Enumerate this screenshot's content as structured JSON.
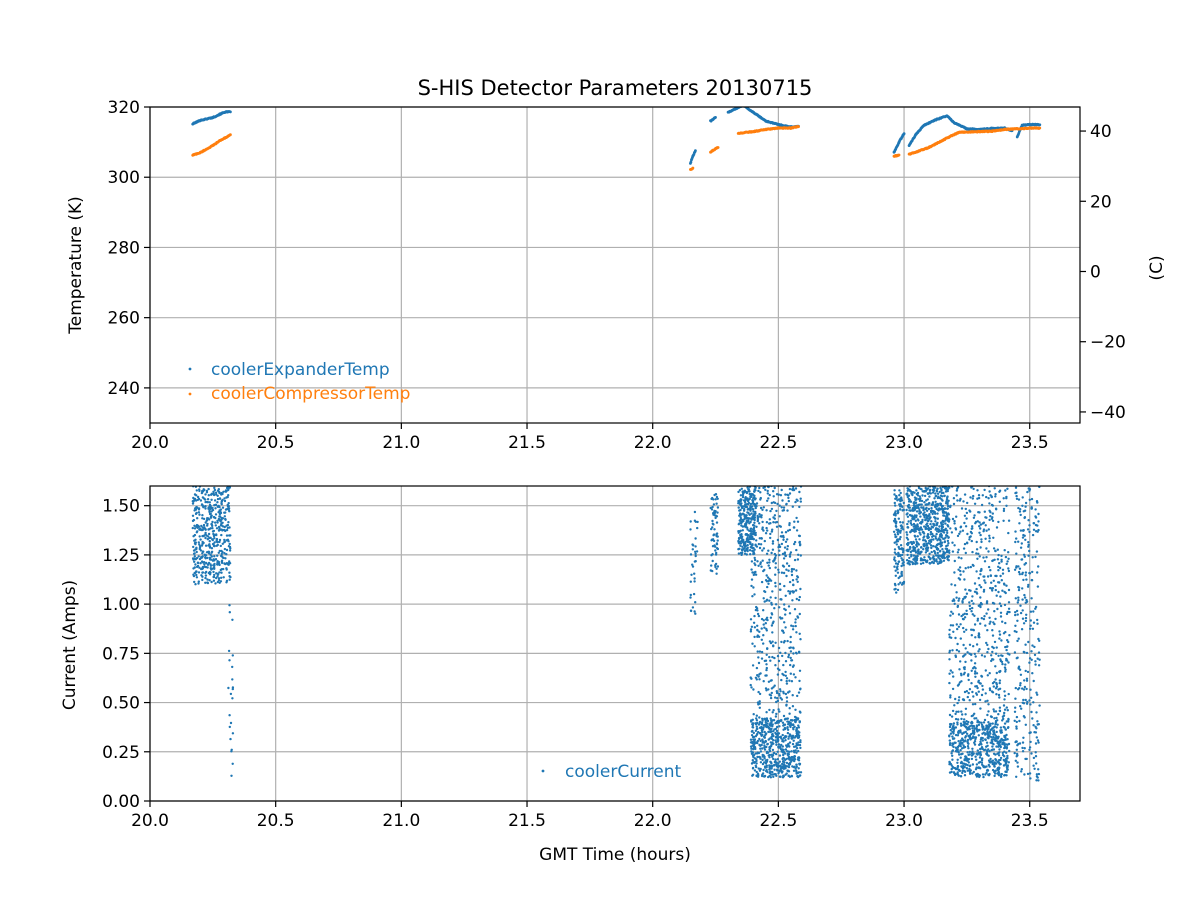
{
  "chart_data": [
    {
      "type": "scatter",
      "title": "S-HIS Detector Parameters 20130715",
      "xlabel": "",
      "ylabel": "Temperature (K)",
      "y2label": "(C)",
      "xlim": [
        20.0,
        23.7
      ],
      "ylim": [
        230,
        320
      ],
      "y2lim": [
        -43.15,
        46.85
      ],
      "xticks": [
        20.0,
        20.5,
        21.0,
        21.5,
        22.0,
        22.5,
        23.0,
        23.5
      ],
      "xtick_labels": [
        "20.0",
        "20.5",
        "21.0",
        "21.5",
        "22.0",
        "22.5",
        "23.0",
        "23.5"
      ],
      "yticks": [
        240,
        260,
        280,
        300,
        320
      ],
      "ytick_labels": [
        "240",
        "260",
        "280",
        "300",
        "320"
      ],
      "y2ticks": [
        -40,
        -20,
        0,
        20,
        40
      ],
      "y2tick_labels": [
        "−40",
        "−20",
        "0",
        "20",
        "40"
      ],
      "grid": true,
      "legend_position": "lower-left",
      "series": [
        {
          "name": "coolerExpanderTemp",
          "color": "#1f77b4",
          "segments": [
            [
              [
                20.17,
                315.2
              ],
              [
                20.2,
                316.2
              ],
              [
                20.25,
                317.0
              ],
              [
                20.28,
                318.0
              ],
              [
                20.3,
                318.6
              ],
              [
                20.32,
                318.6
              ]
            ],
            [
              [
                22.15,
                304.0
              ],
              [
                22.16,
                306.0
              ],
              [
                22.17,
                307.5
              ]
            ],
            [
              [
                22.23,
                316.0
              ],
              [
                22.25,
                317.0
              ]
            ],
            [
              [
                22.3,
                318.5
              ],
              [
                22.33,
                319.5
              ],
              [
                22.36,
                320.5
              ],
              [
                22.4,
                318.5
              ],
              [
                22.45,
                316.0
              ],
              [
                22.5,
                315.0
              ],
              [
                22.55,
                314.3
              ],
              [
                22.58,
                314.5
              ]
            ],
            [
              [
                22.96,
                307.0
              ],
              [
                22.98,
                310.0
              ],
              [
                23.0,
                312.5
              ]
            ],
            [
              [
                23.02,
                309.0
              ],
              [
                23.05,
                312.5
              ],
              [
                23.08,
                314.8
              ],
              [
                23.12,
                316.2
              ],
              [
                23.17,
                317.5
              ],
              [
                23.2,
                315.5
              ],
              [
                23.25,
                313.8
              ],
              [
                23.3,
                313.6
              ],
              [
                23.35,
                313.9
              ],
              [
                23.4,
                314.0
              ],
              [
                23.43,
                313.2
              ]
            ],
            [
              [
                23.45,
                311.5
              ],
              [
                23.47,
                314.8
              ],
              [
                23.5,
                315.0
              ],
              [
                23.54,
                315.0
              ]
            ]
          ]
        },
        {
          "name": "coolerCompressorTemp",
          "color": "#ff7f0e",
          "segments": [
            [
              [
                20.17,
                306.3
              ],
              [
                20.2,
                307.0
              ],
              [
                20.25,
                309.0
              ],
              [
                20.28,
                310.5
              ],
              [
                20.32,
                312.0
              ]
            ],
            [
              [
                22.15,
                302.3
              ],
              [
                22.16,
                302.5
              ]
            ],
            [
              [
                22.23,
                307.2
              ],
              [
                22.26,
                308.5
              ]
            ],
            [
              [
                22.34,
                312.5
              ],
              [
                22.4,
                313.0
              ],
              [
                22.45,
                313.6
              ],
              [
                22.5,
                314.0
              ],
              [
                22.55,
                314.0
              ],
              [
                22.58,
                314.5
              ]
            ],
            [
              [
                22.96,
                306.0
              ],
              [
                22.98,
                306.3
              ]
            ],
            [
              [
                23.02,
                306.5
              ],
              [
                23.1,
                308.5
              ],
              [
                23.18,
                311.5
              ],
              [
                23.22,
                312.8
              ],
              [
                23.3,
                313.0
              ],
              [
                23.35,
                313.1
              ],
              [
                23.4,
                313.6
              ],
              [
                23.45,
                313.8
              ],
              [
                23.5,
                314.0
              ],
              [
                23.54,
                314.0
              ]
            ]
          ]
        }
      ]
    },
    {
      "type": "scatter",
      "title": "",
      "xlabel": "GMT Time (hours)",
      "ylabel": "Current (Amps)",
      "xlim": [
        20.0,
        23.7
      ],
      "ylim": [
        0.0,
        1.6
      ],
      "xticks": [
        20.0,
        20.5,
        21.0,
        21.5,
        22.0,
        22.5,
        23.0,
        23.5
      ],
      "xtick_labels": [
        "20.0",
        "20.5",
        "21.0",
        "21.5",
        "22.0",
        "22.5",
        "23.0",
        "23.5"
      ],
      "yticks": [
        0.0,
        0.25,
        0.5,
        0.75,
        1.0,
        1.25,
        1.5
      ],
      "ytick_labels": [
        "0.00",
        "0.25",
        "0.50",
        "0.75",
        "1.00",
        "1.25",
        "1.50"
      ],
      "grid": true,
      "legend_position": "lower-center",
      "series": [
        {
          "name": "coolerCurrent",
          "color": "#1f77b4",
          "clusters": [
            {
              "x": [
                20.17,
                20.32
              ],
              "y": [
                1.1,
                1.6
              ],
              "n": 500
            },
            {
              "x": [
                20.31,
                20.33
              ],
              "y": [
                0.12,
                1.1
              ],
              "n": 22
            },
            {
              "x": [
                22.15,
                22.18
              ],
              "y": [
                0.95,
                1.5
              ],
              "n": 35
            },
            {
              "x": [
                22.23,
                22.26
              ],
              "y": [
                1.15,
                1.56
              ],
              "n": 70
            },
            {
              "x": [
                22.34,
                22.41
              ],
              "y": [
                1.25,
                1.6
              ],
              "n": 300
            },
            {
              "x": [
                22.39,
                22.59
              ],
              "y": [
                0.12,
                1.6
              ],
              "n": 650
            },
            {
              "x": [
                22.39,
                22.59
              ],
              "y": [
                0.12,
                0.42
              ],
              "n": 450
            },
            {
              "x": [
                22.96,
                23.0
              ],
              "y": [
                1.05,
                1.58
              ],
              "n": 140
            },
            {
              "x": [
                23.01,
                23.18
              ],
              "y": [
                1.2,
                1.6
              ],
              "n": 650
            },
            {
              "x": [
                23.18,
                23.42
              ],
              "y": [
                0.12,
                1.6
              ],
              "n": 700
            },
            {
              "x": [
                23.18,
                23.42
              ],
              "y": [
                0.12,
                0.42
              ],
              "n": 450
            },
            {
              "x": [
                23.44,
                23.54
              ],
              "y": [
                0.1,
                1.6
              ],
              "n": 280
            }
          ]
        }
      ]
    }
  ]
}
